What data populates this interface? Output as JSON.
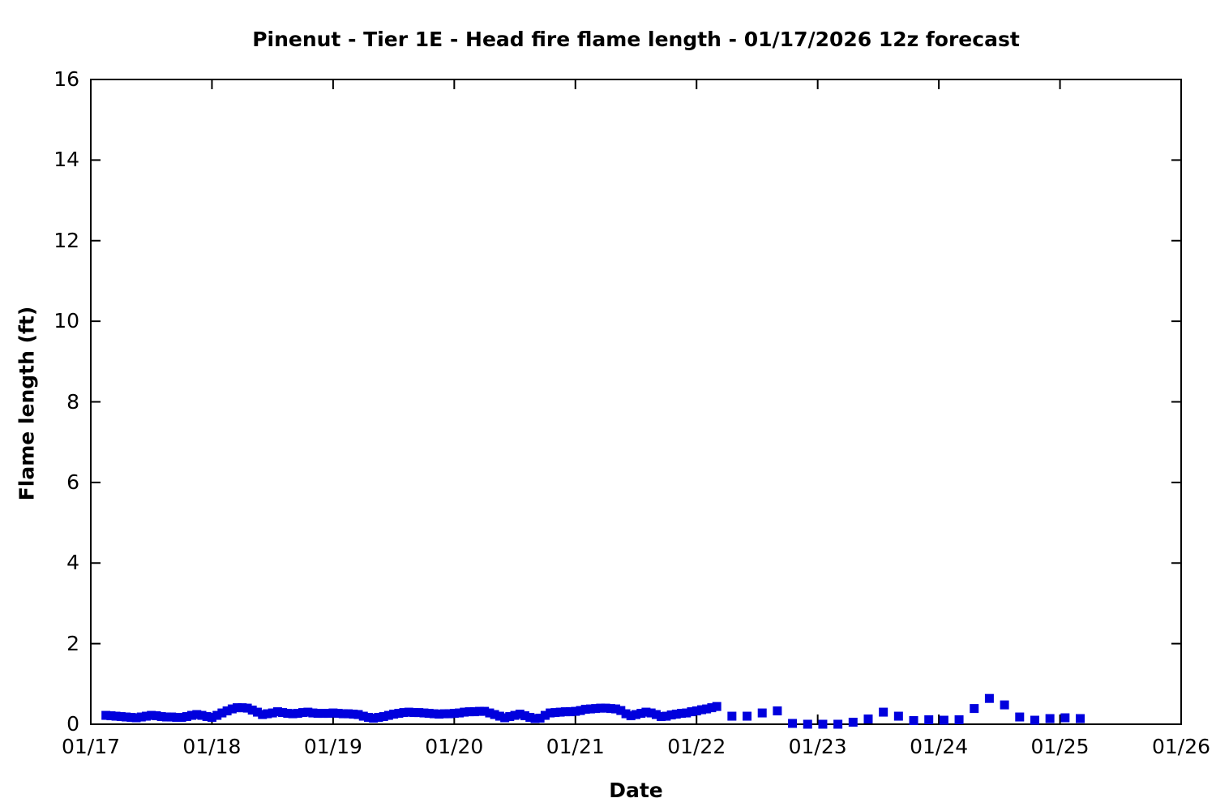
{
  "chart_data": {
    "type": "scatter",
    "title": "Pinenut - Tier 1E - Head fire flame length - 01/17/2026 12z forecast",
    "xlabel": "Date",
    "ylabel": "Flame length (ft)",
    "xlim_days": [
      0,
      9
    ],
    "ylim": [
      0,
      16
    ],
    "x_tick_labels": [
      "01/17",
      "01/18",
      "01/19",
      "01/20",
      "01/21",
      "01/22",
      "01/23",
      "01/24",
      "01/25",
      "01/26"
    ],
    "x_tick_positions_days": [
      0,
      1,
      2,
      3,
      4,
      5,
      6,
      7,
      8,
      9
    ],
    "y_ticks": [
      0,
      2,
      4,
      6,
      8,
      10,
      12,
      14,
      16
    ],
    "grid": false,
    "legend": "none",
    "marker": "filled-square",
    "point_color": "#0000dd",
    "axis_color": "#000000",
    "series": [
      {
        "name": "Head fire flame length (ft)",
        "points_t_days_ft": [
          [
            0.125,
            0.22
          ],
          [
            0.167,
            0.21
          ],
          [
            0.208,
            0.2
          ],
          [
            0.25,
            0.19
          ],
          [
            0.292,
            0.18
          ],
          [
            0.333,
            0.17
          ],
          [
            0.375,
            0.16
          ],
          [
            0.417,
            0.18
          ],
          [
            0.458,
            0.2
          ],
          [
            0.5,
            0.22
          ],
          [
            0.542,
            0.21
          ],
          [
            0.583,
            0.19
          ],
          [
            0.625,
            0.18
          ],
          [
            0.667,
            0.18
          ],
          [
            0.708,
            0.17
          ],
          [
            0.75,
            0.17
          ],
          [
            0.792,
            0.19
          ],
          [
            0.833,
            0.22
          ],
          [
            0.875,
            0.24
          ],
          [
            0.917,
            0.22
          ],
          [
            0.958,
            0.19
          ],
          [
            1.0,
            0.17
          ],
          [
            1.042,
            0.22
          ],
          [
            1.083,
            0.28
          ],
          [
            1.125,
            0.33
          ],
          [
            1.167,
            0.38
          ],
          [
            1.208,
            0.41
          ],
          [
            1.25,
            0.41
          ],
          [
            1.292,
            0.4
          ],
          [
            1.333,
            0.35
          ],
          [
            1.375,
            0.3
          ],
          [
            1.417,
            0.24
          ],
          [
            1.458,
            0.26
          ],
          [
            1.5,
            0.28
          ],
          [
            1.542,
            0.31
          ],
          [
            1.583,
            0.29
          ],
          [
            1.625,
            0.27
          ],
          [
            1.667,
            0.26
          ],
          [
            1.708,
            0.27
          ],
          [
            1.75,
            0.29
          ],
          [
            1.792,
            0.3
          ],
          [
            1.833,
            0.28
          ],
          [
            1.875,
            0.27
          ],
          [
            1.917,
            0.27
          ],
          [
            1.958,
            0.27
          ],
          [
            2.0,
            0.28
          ],
          [
            2.042,
            0.27
          ],
          [
            2.083,
            0.26
          ],
          [
            2.125,
            0.26
          ],
          [
            2.167,
            0.25
          ],
          [
            2.208,
            0.24
          ],
          [
            2.25,
            0.2
          ],
          [
            2.292,
            0.17
          ],
          [
            2.333,
            0.15
          ],
          [
            2.375,
            0.17
          ],
          [
            2.417,
            0.19
          ],
          [
            2.458,
            0.22
          ],
          [
            2.5,
            0.25
          ],
          [
            2.542,
            0.27
          ],
          [
            2.583,
            0.29
          ],
          [
            2.625,
            0.3
          ],
          [
            2.667,
            0.29
          ],
          [
            2.708,
            0.29
          ],
          [
            2.75,
            0.28
          ],
          [
            2.792,
            0.27
          ],
          [
            2.833,
            0.26
          ],
          [
            2.875,
            0.25
          ],
          [
            2.917,
            0.26
          ],
          [
            2.958,
            0.26
          ],
          [
            3.0,
            0.27
          ],
          [
            3.042,
            0.28
          ],
          [
            3.083,
            0.3
          ],
          [
            3.125,
            0.31
          ],
          [
            3.167,
            0.31
          ],
          [
            3.208,
            0.32
          ],
          [
            3.25,
            0.32
          ],
          [
            3.292,
            0.28
          ],
          [
            3.333,
            0.24
          ],
          [
            3.375,
            0.2
          ],
          [
            3.417,
            0.16
          ],
          [
            3.458,
            0.19
          ],
          [
            3.5,
            0.22
          ],
          [
            3.542,
            0.25
          ],
          [
            3.583,
            0.21
          ],
          [
            3.625,
            0.17
          ],
          [
            3.667,
            0.14
          ],
          [
            3.708,
            0.15
          ],
          [
            3.75,
            0.22
          ],
          [
            3.792,
            0.28
          ],
          [
            3.833,
            0.29
          ],
          [
            3.875,
            0.3
          ],
          [
            3.917,
            0.31
          ],
          [
            3.958,
            0.31
          ],
          [
            4.0,
            0.32
          ],
          [
            4.042,
            0.34
          ],
          [
            4.083,
            0.37
          ],
          [
            4.125,
            0.38
          ],
          [
            4.167,
            0.39
          ],
          [
            4.208,
            0.4
          ],
          [
            4.25,
            0.4
          ],
          [
            4.292,
            0.39
          ],
          [
            4.333,
            0.38
          ],
          [
            4.375,
            0.34
          ],
          [
            4.417,
            0.26
          ],
          [
            4.458,
            0.21
          ],
          [
            4.5,
            0.24
          ],
          [
            4.542,
            0.27
          ],
          [
            4.583,
            0.3
          ],
          [
            4.625,
            0.28
          ],
          [
            4.667,
            0.24
          ],
          [
            4.708,
            0.19
          ],
          [
            4.75,
            0.2
          ],
          [
            4.792,
            0.23
          ],
          [
            4.833,
            0.25
          ],
          [
            4.875,
            0.27
          ],
          [
            4.917,
            0.28
          ],
          [
            4.958,
            0.31
          ],
          [
            5.0,
            0.33
          ],
          [
            5.042,
            0.36
          ],
          [
            5.083,
            0.38
          ],
          [
            5.125,
            0.41
          ],
          [
            5.167,
            0.44
          ],
          [
            5.292,
            0.2
          ],
          [
            5.417,
            0.2
          ],
          [
            5.542,
            0.28
          ],
          [
            5.667,
            0.33
          ],
          [
            5.792,
            0.02
          ],
          [
            5.917,
            0.0
          ],
          [
            6.042,
            0.0
          ],
          [
            6.167,
            0.0
          ],
          [
            6.292,
            0.05
          ],
          [
            6.417,
            0.13
          ],
          [
            6.542,
            0.3
          ],
          [
            6.667,
            0.2
          ],
          [
            6.792,
            0.09
          ],
          [
            6.917,
            0.11
          ],
          [
            7.042,
            0.1
          ],
          [
            7.167,
            0.11
          ],
          [
            7.292,
            0.39
          ],
          [
            7.417,
            0.64
          ],
          [
            7.542,
            0.48
          ],
          [
            7.667,
            0.18
          ],
          [
            7.792,
            0.1
          ],
          [
            7.917,
            0.14
          ],
          [
            8.042,
            0.16
          ],
          [
            8.167,
            0.14
          ]
        ]
      }
    ]
  }
}
